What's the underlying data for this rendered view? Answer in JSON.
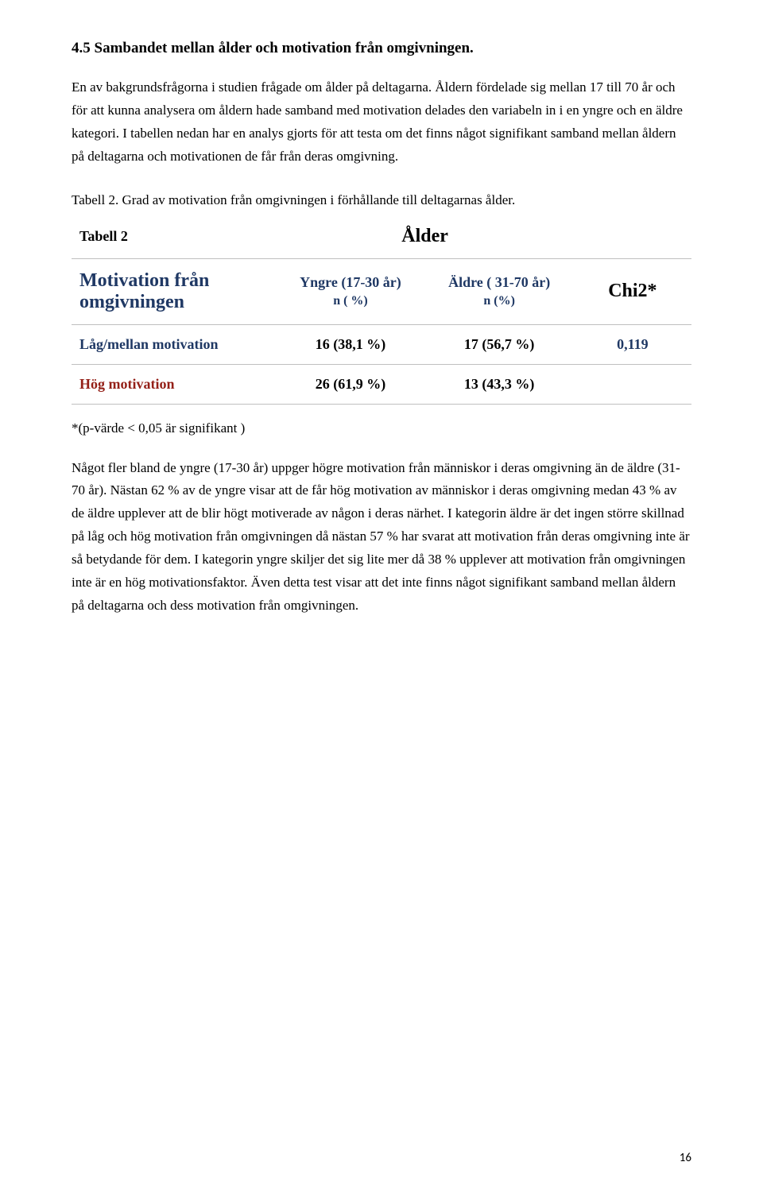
{
  "heading": "4.5  Sambandet mellan ålder och motivation från omgivningen.",
  "para1": "En av bakgrundsfrågorna i studien frågade om ålder på deltagarna. Åldern fördelade sig mellan 17 till 70 år och för att kunna analysera om åldern hade samband med motivation delades den variabeln in i en yngre och en äldre kategori. I tabellen nedan har en analys gjorts för att testa om det finns något signifikant samband mellan åldern på deltagarna och motivationen de får från deras omgivning.",
  "caption": "Tabell 2. Grad av motivation från omgivningen i förhållande till deltagarnas ålder.",
  "table": {
    "header_left": "Tabell 2",
    "header_center": "Ålder",
    "sub_label_top": "Motivation från",
    "sub_label_bot": "omgivningen",
    "yng_head": "Yngre (17-30 år)",
    "yng_n": "n ( %)",
    "old_head": "Äldre ( 31-70 år)",
    "old_n": "n (%)",
    "chi_head": "Chi2*",
    "low_label": "Låg/mellan motivation",
    "low_yng": "16 (38,1 %)",
    "low_old": "17 (56,7 %)",
    "low_chi": "0,119",
    "high_label": "Hög motivation",
    "high_yng": "26 (61,9 %)",
    "high_old": "13 (43,3 %)"
  },
  "pfootnote": "*(p-värde < 0,05 är signifikant )",
  "para2": "Något fler bland de yngre (17-30 år) uppger högre motivation från människor i deras omgivning än de äldre (31-70 år). Nästan 62 % av de yngre visar att de får hög motivation av människor i deras omgivning medan 43 % av de äldre upplever att de blir högt motiverade av någon i deras närhet. I kategorin äldre är det ingen större skillnad på låg och hög motivation från omgivningen då nästan 57 % har svarat att motivation från deras omgivning inte är så betydande för dem.  I kategorin yngre skiljer det sig lite mer då 38 % upplever att motivation från omgivningen inte är en hög motivationsfaktor. Även detta test visar att det inte finns något signifikant samband mellan åldern på deltagarna och dess motivation från omgivningen.",
  "pagenum": "16"
}
